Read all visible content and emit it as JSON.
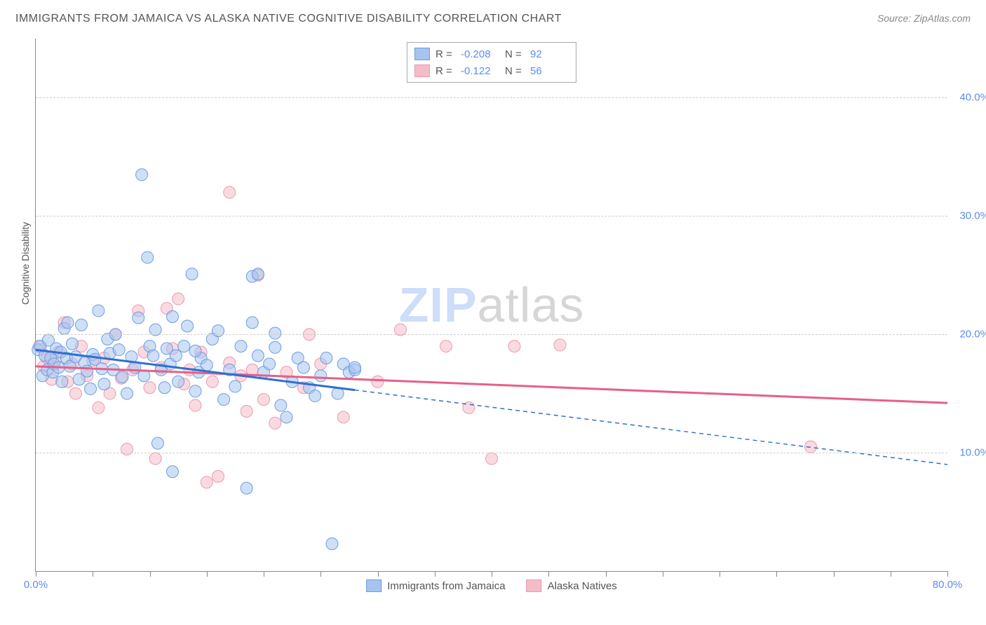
{
  "header": {
    "title": "IMMIGRANTS FROM JAMAICA VS ALASKA NATIVE COGNITIVE DISABILITY CORRELATION CHART",
    "source_prefix": "Source: ",
    "source_name": "ZipAtlas.com"
  },
  "axes": {
    "y_label": "Cognitive Disability",
    "x_min": 0.0,
    "x_max": 80.0,
    "y_min": 0.0,
    "y_max": 45.0,
    "y_ticks": [
      {
        "v": 10.0,
        "label": "10.0%"
      },
      {
        "v": 20.0,
        "label": "20.0%"
      },
      {
        "v": 30.0,
        "label": "30.0%"
      },
      {
        "v": 40.0,
        "label": "40.0%"
      }
    ],
    "x_ticks": [
      0,
      5,
      10,
      15,
      20,
      25,
      30,
      35,
      40,
      45,
      50,
      55,
      60,
      65,
      70,
      75,
      80
    ],
    "x_labeled": [
      {
        "v": 0.0,
        "label": "0.0%"
      },
      {
        "v": 80.0,
        "label": "80.0%"
      }
    ]
  },
  "colors": {
    "blue_fill": "#a7c4ee",
    "blue_stroke": "#6a9ee6",
    "blue_line": "#2f6fd0",
    "pink_fill": "#f5bcc8",
    "pink_stroke": "#ea9ab0",
    "pink_line": "#e85f87",
    "grid": "#cccccc",
    "axis": "#888888",
    "text": "#555555",
    "value_text": "#5b8def",
    "background": "#ffffff"
  },
  "styling": {
    "marker_radius": 8.5,
    "marker_opacity": 0.55,
    "line_width_solid": 3,
    "line_width_dash": 1.5,
    "dash_pattern": "6,5",
    "title_fontsize": 16,
    "tick_fontsize": 15,
    "axis_label_fontsize": 14,
    "watermark_fontsize": 70
  },
  "legend_top": {
    "rows": [
      {
        "swatch": "blue",
        "r_label": "R =",
        "r_value": "-0.208",
        "n_label": "N =",
        "n_value": "92"
      },
      {
        "swatch": "pink",
        "r_label": "R =",
        "r_value": "-0.122",
        "n_label": "N =",
        "n_value": "56"
      }
    ]
  },
  "legend_bottom": {
    "items": [
      {
        "swatch": "blue",
        "label": "Immigrants from Jamaica"
      },
      {
        "swatch": "pink",
        "label": "Alaska Natives"
      }
    ]
  },
  "watermark": {
    "zip": "ZIP",
    "atlas": "atlas"
  },
  "trend_lines": {
    "blue_solid": {
      "x1": 0.0,
      "y1": 18.7,
      "x2": 28.0,
      "y2": 15.3
    },
    "blue_dashed": {
      "x1": 28.0,
      "y1": 15.3,
      "x2": 80.0,
      "y2": 9.0
    },
    "pink_solid": {
      "x1": 0.0,
      "y1": 17.3,
      "x2": 80.0,
      "y2": 14.2
    }
  },
  "series": {
    "blue": [
      [
        0.2,
        18.7
      ],
      [
        0.4,
        19.0
      ],
      [
        0.6,
        16.5
      ],
      [
        0.8,
        18.2
      ],
      [
        1.0,
        17.0
      ],
      [
        1.1,
        19.5
      ],
      [
        1.3,
        18.0
      ],
      [
        1.5,
        16.8
      ],
      [
        1.6,
        17.5
      ],
      [
        1.8,
        18.8
      ],
      [
        2.0,
        17.2
      ],
      [
        2.2,
        18.5
      ],
      [
        2.3,
        16.0
      ],
      [
        2.5,
        20.5
      ],
      [
        2.7,
        18.0
      ],
      [
        2.8,
        21.0
      ],
      [
        3.0,
        17.3
      ],
      [
        3.2,
        19.2
      ],
      [
        3.5,
        18.1
      ],
      [
        3.8,
        16.2
      ],
      [
        4.0,
        20.8
      ],
      [
        4.3,
        17.6
      ],
      [
        4.5,
        16.9
      ],
      [
        4.8,
        15.4
      ],
      [
        5.0,
        18.3
      ],
      [
        5.2,
        17.9
      ],
      [
        5.5,
        22.0
      ],
      [
        5.8,
        17.1
      ],
      [
        6.0,
        15.8
      ],
      [
        6.3,
        19.6
      ],
      [
        6.5,
        18.4
      ],
      [
        6.8,
        17.0
      ],
      [
        7.0,
        20.0
      ],
      [
        7.3,
        18.7
      ],
      [
        7.6,
        16.4
      ],
      [
        8.0,
        15.0
      ],
      [
        8.4,
        18.1
      ],
      [
        8.7,
        17.2
      ],
      [
        9.0,
        21.4
      ],
      [
        9.3,
        33.5
      ],
      [
        9.5,
        16.5
      ],
      [
        9.8,
        26.5
      ],
      [
        10.0,
        19.0
      ],
      [
        10.3,
        18.2
      ],
      [
        10.5,
        20.4
      ],
      [
        10.7,
        10.8
      ],
      [
        11.0,
        17.0
      ],
      [
        11.3,
        15.5
      ],
      [
        11.5,
        18.8
      ],
      [
        11.8,
        17.5
      ],
      [
        12.0,
        21.5
      ],
      [
        12.3,
        18.2
      ],
      [
        12.5,
        16.0
      ],
      [
        13.0,
        19.0
      ],
      [
        13.3,
        20.7
      ],
      [
        13.7,
        25.1
      ],
      [
        14.0,
        15.2
      ],
      [
        14.3,
        16.8
      ],
      [
        14.5,
        18.0
      ],
      [
        15.0,
        17.4
      ],
      [
        15.5,
        19.6
      ],
      [
        16.0,
        20.3
      ],
      [
        16.5,
        14.5
      ],
      [
        17.0,
        17.0
      ],
      [
        17.5,
        15.6
      ],
      [
        18.0,
        19.0
      ],
      [
        18.5,
        7.0
      ],
      [
        19.0,
        21.0
      ],
      [
        19.0,
        24.9
      ],
      [
        19.5,
        18.2
      ],
      [
        19.5,
        25.1
      ],
      [
        20.0,
        16.8
      ],
      [
        20.5,
        17.5
      ],
      [
        21.0,
        18.9
      ],
      [
        21.5,
        14.0
      ],
      [
        21.0,
        20.1
      ],
      [
        22.0,
        13.0
      ],
      [
        22.5,
        16.0
      ],
      [
        23.0,
        18.0
      ],
      [
        23.5,
        17.2
      ],
      [
        24.0,
        15.5
      ],
      [
        24.5,
        14.8
      ],
      [
        25.0,
        16.5
      ],
      [
        25.5,
        18.0
      ],
      [
        26.0,
        2.3
      ],
      [
        26.5,
        15.0
      ],
      [
        27.0,
        17.5
      ],
      [
        27.5,
        16.8
      ],
      [
        28.0,
        17.0
      ],
      [
        28.0,
        17.2
      ],
      [
        14.0,
        18.6
      ],
      [
        12.0,
        8.4
      ]
    ],
    "pink": [
      [
        0.3,
        19.0
      ],
      [
        0.7,
        17.3
      ],
      [
        1.0,
        18.0
      ],
      [
        1.4,
        16.2
      ],
      [
        1.7,
        17.8
      ],
      [
        2.0,
        18.5
      ],
      [
        2.5,
        21.0
      ],
      [
        2.8,
        16.0
      ],
      [
        3.2,
        17.5
      ],
      [
        3.5,
        15.0
      ],
      [
        4.0,
        19.0
      ],
      [
        4.5,
        16.5
      ],
      [
        5.0,
        17.8
      ],
      [
        5.5,
        13.8
      ],
      [
        6.0,
        18.0
      ],
      [
        6.5,
        15.0
      ],
      [
        7.0,
        20.0
      ],
      [
        7.5,
        16.3
      ],
      [
        8.0,
        10.3
      ],
      [
        8.5,
        17.0
      ],
      [
        9.0,
        22.0
      ],
      [
        9.5,
        18.5
      ],
      [
        10.0,
        15.5
      ],
      [
        10.5,
        9.5
      ],
      [
        11.0,
        17.2
      ],
      [
        11.5,
        22.2
      ],
      [
        12.0,
        18.8
      ],
      [
        12.5,
        23.0
      ],
      [
        13.0,
        15.8
      ],
      [
        13.5,
        17.0
      ],
      [
        14.0,
        14.0
      ],
      [
        14.5,
        18.5
      ],
      [
        15.0,
        7.5
      ],
      [
        17.0,
        32.0
      ],
      [
        15.5,
        16.0
      ],
      [
        16.0,
        8.0
      ],
      [
        17.0,
        17.6
      ],
      [
        18.0,
        16.5
      ],
      [
        18.5,
        13.5
      ],
      [
        19.0,
        17.0
      ],
      [
        19.5,
        25.0
      ],
      [
        20.0,
        14.5
      ],
      [
        21.0,
        12.5
      ],
      [
        22.0,
        16.8
      ],
      [
        23.5,
        15.5
      ],
      [
        24.0,
        20.0
      ],
      [
        25.0,
        17.5
      ],
      [
        27.0,
        13.0
      ],
      [
        30.0,
        16.0
      ],
      [
        32.0,
        20.4
      ],
      [
        36.0,
        19.0
      ],
      [
        38.0,
        13.8
      ],
      [
        42.0,
        19.0
      ],
      [
        40.0,
        9.5
      ],
      [
        46.0,
        19.1
      ],
      [
        68.0,
        10.5
      ]
    ]
  }
}
